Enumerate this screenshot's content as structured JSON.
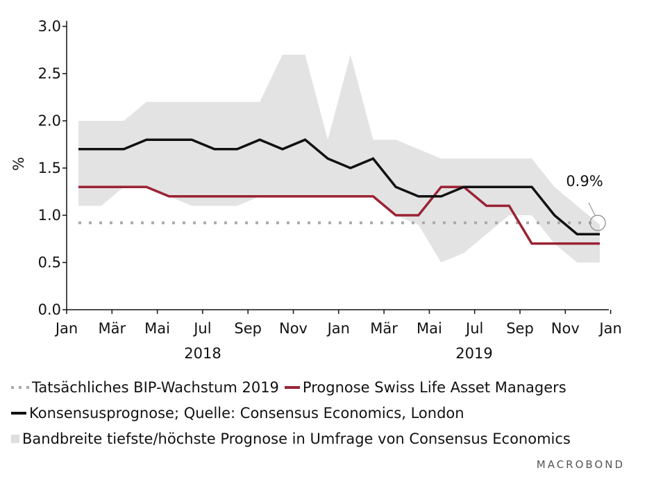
{
  "chart_data": {
    "type": "line",
    "ylabel": "%",
    "ylim": [
      0,
      3.0
    ],
    "yticks": [
      "0.0",
      "0.5",
      "1.0",
      "1.5",
      "2.0",
      "2.5",
      "3.0"
    ],
    "xticks": [
      "Jan",
      "Mär",
      "Mai",
      "Jul",
      "Sep",
      "Nov",
      "Jan",
      "Mär",
      "Mai",
      "Jul",
      "Sep",
      "Nov",
      "Jan"
    ],
    "year_labels": [
      "2018",
      "2019"
    ],
    "annotation": "0.9%",
    "x": [
      0,
      1,
      2,
      3,
      4,
      5,
      6,
      7,
      8,
      9,
      10,
      11,
      12,
      13,
      14,
      15,
      16,
      17,
      18,
      19,
      20,
      21,
      22,
      23
    ],
    "band": {
      "name": "Bandbreite tiefste/höchste Prognose in Umfrage von Consensus Economics",
      "low": [
        1.1,
        1.1,
        1.3,
        1.3,
        1.2,
        1.1,
        1.1,
        1.1,
        1.2,
        1.2,
        1.2,
        1.2,
        1.2,
        1.2,
        1.0,
        0.9,
        0.5,
        0.6,
        0.8,
        1.0,
        1.0,
        0.7,
        0.5,
        0.5
      ],
      "high": [
        2.0,
        2.0,
        2.0,
        2.2,
        2.2,
        2.2,
        2.2,
        2.2,
        2.2,
        2.7,
        2.7,
        1.8,
        2.7,
        1.8,
        1.8,
        1.7,
        1.6,
        1.6,
        1.6,
        1.6,
        1.6,
        1.3,
        1.1,
        0.9
      ]
    },
    "series": [
      {
        "name": "Konsensusprognose; Quelle: Consensus Economics, London",
        "values": [
          1.7,
          1.7,
          1.7,
          1.8,
          1.8,
          1.8,
          1.7,
          1.7,
          1.8,
          1.7,
          1.8,
          1.6,
          1.5,
          1.6,
          1.3,
          1.2,
          1.2,
          1.3,
          1.3,
          1.3,
          1.3,
          1.0,
          0.8,
          0.8
        ],
        "color": "#111111"
      },
      {
        "name": "Prognose Swiss Life Asset Managers",
        "values": [
          1.3,
          1.3,
          1.3,
          1.3,
          1.2,
          1.2,
          1.2,
          1.2,
          1.2,
          1.2,
          1.2,
          1.2,
          1.2,
          1.2,
          1.0,
          1.0,
          1.3,
          1.3,
          1.1,
          1.1,
          0.7,
          0.7,
          0.7,
          0.7
        ],
        "color": "#9b2335"
      },
      {
        "name": "Tatsächliches BIP-Wachstum 2019",
        "value": 0.92,
        "color": "#aaaaaa"
      }
    ]
  },
  "legend": {
    "actual": "Tatsächliches BIP-Wachstum 2019",
    "swisslife": "Prognose Swiss Life Asset Managers",
    "consensus": "Konsensusprognose; Quelle: Consensus Economics, London",
    "band": "Bandbreite tiefste/höchste Prognose in Umfrage von Consensus Economics"
  },
  "brand": "MACROBOND"
}
